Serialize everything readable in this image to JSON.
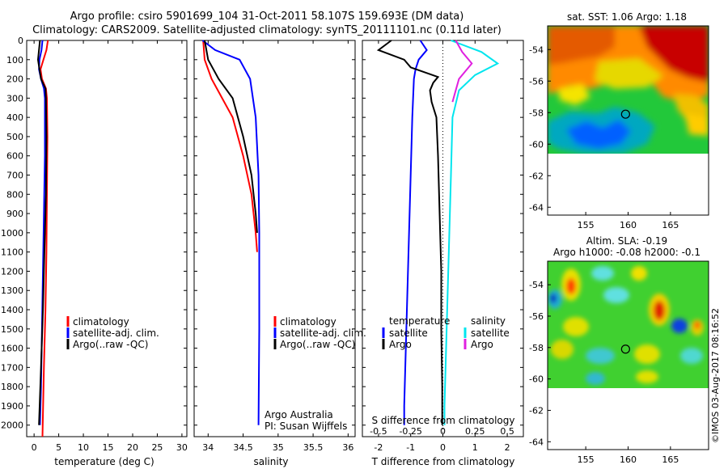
{
  "header": {
    "line1": "Argo profile: csiro 5901699_104 31-Oct-2011 58.107S 159.693E (DM data)",
    "line2": "Climatology: CARS2009. Satellite-adjusted climatology: synTS_20111101.nc (0.11d later)"
  },
  "credit": "©IMOS 03-Aug-2017 08:16:52",
  "colors": {
    "climatology": "#ff0000",
    "satellite": "#0000ff",
    "argo": "#000000",
    "satellite_s": "#00e5ee",
    "argo_s": "#e020e0"
  },
  "chart_data": [
    {
      "type": "line",
      "id": "temperature",
      "xlabel": "temperature (deg C)",
      "xlim": [
        -1.5,
        31
      ],
      "xticks": [
        0,
        5,
        10,
        15,
        20,
        25,
        30
      ],
      "ylim": [
        2060,
        0
      ],
      "yticks": [
        0,
        100,
        200,
        300,
        400,
        500,
        600,
        700,
        800,
        900,
        1000,
        1100,
        1200,
        1300,
        1400,
        1500,
        1600,
        1700,
        1800,
        1900,
        2000
      ],
      "legend": [
        "climatology",
        "satellite-adj. clim.",
        "Argo(..raw -QC)"
      ],
      "series": [
        {
          "name": "climatology",
          "color": "#ff0000",
          "points": [
            [
              2.8,
              0
            ],
            [
              2.5,
              50
            ],
            [
              1.9,
              100
            ],
            [
              1.3,
              150
            ],
            [
              1.6,
              200
            ],
            [
              2.4,
              250
            ],
            [
              2.6,
              300
            ],
            [
              2.7,
              500
            ],
            [
              2.6,
              800
            ],
            [
              2.5,
              1100
            ],
            [
              2.3,
              1400
            ],
            [
              2.0,
              1700
            ],
            [
              1.7,
              2060
            ]
          ]
        },
        {
          "name": "satellite-adj. clim.",
          "color": "#0000ff",
          "points": [
            [
              1.7,
              0
            ],
            [
              1.5,
              50
            ],
            [
              1.1,
              100
            ],
            [
              1.0,
              150
            ],
            [
              1.4,
              200
            ],
            [
              2.0,
              250
            ],
            [
              2.2,
              300
            ],
            [
              2.2,
              600
            ],
            [
              2.0,
              900
            ],
            [
              1.8,
              1200
            ],
            [
              1.6,
              1500
            ],
            [
              1.4,
              1800
            ],
            [
              1.2,
              2000
            ]
          ]
        },
        {
          "name": "Argo(..raw -QC)",
          "color": "#000000",
          "points": [
            [
              1.2,
              0
            ],
            [
              1.0,
              50
            ],
            [
              0.8,
              100
            ],
            [
              1.1,
              150
            ],
            [
              1.4,
              200
            ],
            [
              2.3,
              250
            ],
            [
              2.4,
              300
            ],
            [
              2.5,
              500
            ],
            [
              2.4,
              800
            ],
            [
              2.1,
              1100
            ],
            [
              1.8,
              1400
            ],
            [
              1.4,
              1700
            ],
            [
              1.0,
              2000
            ]
          ]
        }
      ]
    },
    {
      "type": "line",
      "id": "salinity",
      "xlabel": "salinity",
      "xlim": [
        33.8,
        36.1
      ],
      "xticks": [
        34,
        34.5,
        35,
        35.5,
        36
      ],
      "ylim": [
        2060,
        0
      ],
      "legend": [
        "climatology",
        "satellite-adj. clim.",
        "Argo(..raw -QC)"
      ],
      "annotation": [
        "Argo Australia",
        "PI: Susan Wijffels"
      ],
      "series": [
        {
          "name": "climatology",
          "color": "#ff0000",
          "points": [
            [
              33.93,
              0
            ],
            [
              33.95,
              100
            ],
            [
              34.05,
              200
            ],
            [
              34.2,
              300
            ],
            [
              34.35,
              400
            ],
            [
              34.5,
              600
            ],
            [
              34.62,
              800
            ],
            [
              34.68,
              1000
            ],
            [
              34.7,
              1100
            ]
          ]
        },
        {
          "name": "satellite-adj. clim.",
          "color": "#0000ff",
          "points": [
            [
              33.92,
              0
            ],
            [
              34.1,
              50
            ],
            [
              34.45,
              100
            ],
            [
              34.6,
              200
            ],
            [
              34.68,
              400
            ],
            [
              34.72,
              700
            ],
            [
              34.73,
              1000
            ],
            [
              34.73,
              1500
            ],
            [
              34.72,
              2000
            ]
          ]
        },
        {
          "name": "Argo(..raw -QC)",
          "color": "#000000",
          "points": [
            [
              33.95,
              0
            ],
            [
              34.0,
              100
            ],
            [
              34.15,
              200
            ],
            [
              34.35,
              300
            ],
            [
              34.5,
              500
            ],
            [
              34.62,
              700
            ],
            [
              34.68,
              900
            ],
            [
              34.7,
              1000
            ]
          ]
        }
      ]
    },
    {
      "type": "line",
      "id": "difference",
      "xlabel": "T difference from climatology",
      "xlim": [
        -2.5,
        2.5
      ],
      "xticks": [
        -2,
        -1,
        0,
        1,
        2
      ],
      "s_label": "S difference from climatology",
      "s_ticks": [
        "-0.5",
        "-0.25",
        "0",
        "0.25",
        "0.5"
      ],
      "ylim": [
        2060,
        0
      ],
      "legend_headers": [
        "temperature",
        "salinity"
      ],
      "legend": [
        "satellite",
        "Argo",
        "satellite",
        "Argo"
      ],
      "series": [
        {
          "name": "satellite",
          "color": "#0000ff",
          "points": [
            [
              -0.7,
              0
            ],
            [
              -0.5,
              50
            ],
            [
              -0.75,
              100
            ],
            [
              -0.85,
              150
            ],
            [
              -0.9,
              200
            ],
            [
              -0.95,
              400
            ],
            [
              -1.0,
              700
            ],
            [
              -1.05,
              1000
            ],
            [
              -1.1,
              1300
            ],
            [
              -1.15,
              1600
            ],
            [
              -1.2,
              1900
            ],
            [
              -1.2,
              2000
            ]
          ]
        },
        {
          "name": "Argo",
          "color": "#000000",
          "points": [
            [
              -1.6,
              0
            ],
            [
              -2.0,
              50
            ],
            [
              -1.2,
              100
            ],
            [
              -1.0,
              140
            ],
            [
              -0.15,
              190
            ],
            [
              -0.3,
              220
            ],
            [
              -0.4,
              260
            ],
            [
              -0.35,
              320
            ],
            [
              -0.2,
              400
            ],
            [
              -0.15,
              600
            ],
            [
              -0.1,
              900
            ],
            [
              -0.05,
              1200
            ],
            [
              -0.05,
              1500
            ],
            [
              -0.02,
              1800
            ],
            [
              -0.02,
              2000
            ]
          ]
        },
        {
          "name": "satellite",
          "color": "#00e5ee",
          "points": [
            [
              0.25,
              0
            ],
            [
              1.2,
              60
            ],
            [
              1.7,
              120
            ],
            [
              1.0,
              180
            ],
            [
              0.5,
              260
            ],
            [
              0.3,
              400
            ],
            [
              0.25,
              700
            ],
            [
              0.2,
              1000
            ],
            [
              0.15,
              1300
            ],
            [
              0.1,
              1600
            ],
            [
              0.05,
              1900
            ],
            [
              0.05,
              2000
            ]
          ]
        },
        {
          "name": "Argo",
          "color": "#e020e0",
          "points": [
            [
              0.4,
              0
            ],
            [
              0.6,
              60
            ],
            [
              0.9,
              120
            ],
            [
              0.5,
              200
            ],
            [
              0.4,
              260
            ],
            [
              0.3,
              320
            ]
          ]
        }
      ]
    },
    {
      "type": "heatmap",
      "id": "sst",
      "title": "sat. SST: 1.06 Argo: 1.18",
      "xticks": [
        155,
        160,
        165
      ],
      "yticks": [
        -54,
        -56,
        -58,
        -60,
        -62,
        -64
      ],
      "xlim": [
        150.5,
        169.5
      ],
      "ylim": [
        -64.5,
        -52.5
      ],
      "data_ylim": [
        -60,
        -52.5
      ],
      "marker": {
        "lon": 159.7,
        "lat": -58.1
      }
    },
    {
      "type": "heatmap",
      "id": "sla",
      "title": "Altim. SLA: -0.19",
      "subtitle": "Argo h1000: -0.08 h2000: -0.1",
      "xticks": [
        155,
        160,
        165
      ],
      "yticks": [
        -54,
        -56,
        -58,
        -60,
        -62,
        -64
      ],
      "xlim": [
        150.5,
        169.5
      ],
      "ylim": [
        -64.5,
        -52.5
      ],
      "data_ylim": [
        -60,
        -52.5
      ],
      "marker": {
        "lon": 159.7,
        "lat": -58.1
      }
    }
  ]
}
